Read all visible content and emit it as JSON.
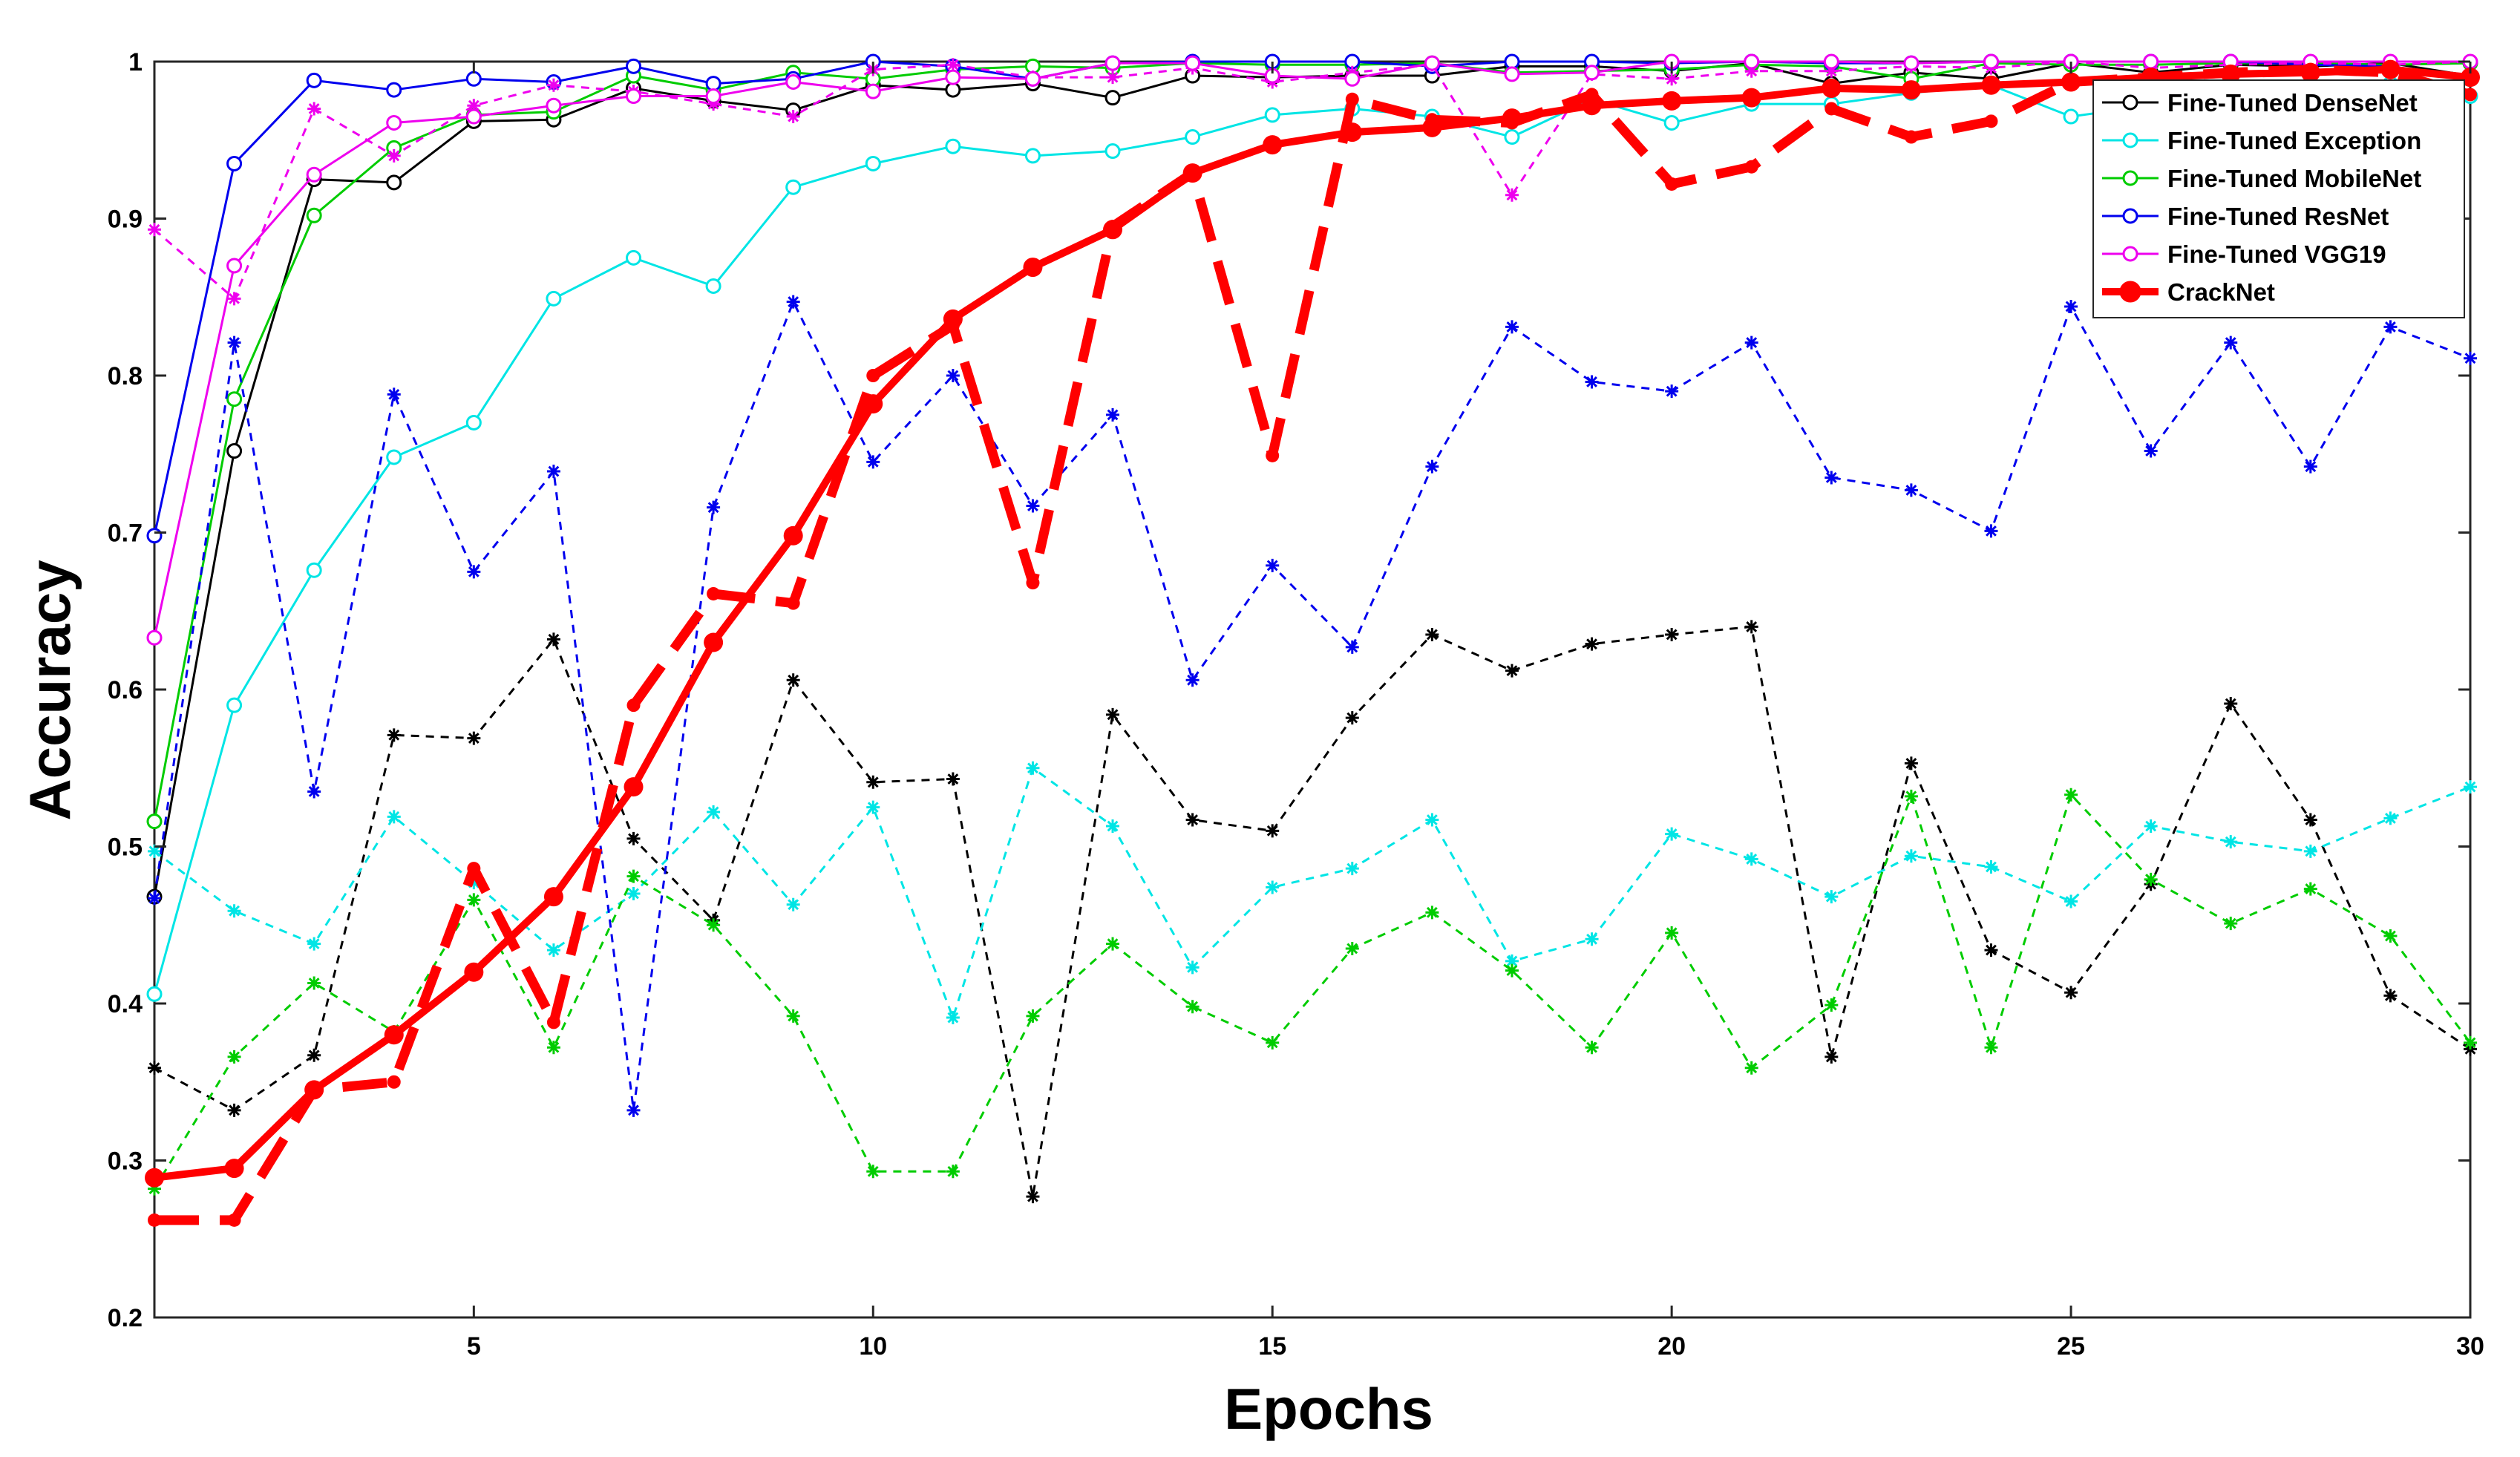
{
  "chart_data": {
    "type": "line",
    "xlabel": "Epochs",
    "ylabel": "Accuracy",
    "xlim": [
      1,
      30
    ],
    "ylim": [
      0.2,
      1.0
    ],
    "xticks": [
      5,
      10,
      15,
      20,
      25,
      30
    ],
    "yticks": [
      0.2,
      0.3,
      0.4,
      0.5,
      0.6,
      0.7,
      0.8,
      0.9,
      1.0
    ],
    "ytick_labels": [
      "0.2",
      "0.3",
      "0.4",
      "0.5",
      "0.6",
      "0.7",
      "0.8",
      "0.9",
      "1"
    ],
    "grid": false,
    "legend_position": "top-right",
    "x": [
      1,
      2,
      3,
      4,
      5,
      6,
      7,
      8,
      9,
      10,
      11,
      12,
      13,
      14,
      15,
      16,
      17,
      18,
      19,
      20,
      21,
      22,
      23,
      24,
      25,
      26,
      27,
      28,
      29,
      30
    ],
    "series": [
      {
        "name": "Fine-Tuned DenseNet",
        "color": "#000000",
        "legend": true,
        "train": [
          0.468,
          0.752,
          0.925,
          0.923,
          0.962,
          0.963,
          0.983,
          0.975,
          0.969,
          0.985,
          0.982,
          0.986,
          0.977,
          0.991,
          0.99,
          0.991,
          0.991,
          0.997,
          0.997,
          0.994,
          0.999,
          0.986,
          0.993,
          0.989,
          0.999,
          0.993,
          0.998,
          0.997,
          0.999,
          0.991
        ],
        "val": [
          0.359,
          0.332,
          0.367,
          0.571,
          0.569,
          0.632,
          0.505,
          0.453,
          0.606,
          0.541,
          0.543,
          0.277,
          0.584,
          0.517,
          0.51,
          0.582,
          0.635,
          0.612,
          0.629,
          0.635,
          0.64,
          0.366,
          0.553,
          0.434,
          0.407,
          0.476,
          0.591,
          0.517,
          0.405,
          0.371
        ]
      },
      {
        "name": "Fine-Tuned Exception",
        "color": "#00e5e5",
        "legend": true,
        "train": [
          0.406,
          0.59,
          0.676,
          0.748,
          0.77,
          0.849,
          0.875,
          0.857,
          0.92,
          0.935,
          0.946,
          0.94,
          0.943,
          0.952,
          0.966,
          0.97,
          0.965,
          0.952,
          0.976,
          0.961,
          0.973,
          0.973,
          0.98,
          0.985,
          0.965,
          0.972,
          0.977,
          0.982,
          0.986,
          0.978
        ],
        "val": [
          0.497,
          0.459,
          0.438,
          0.519,
          0.477,
          0.434,
          0.47,
          0.522,
          0.463,
          0.525,
          0.391,
          0.55,
          0.513,
          0.423,
          0.474,
          0.486,
          0.517,
          0.427,
          0.441,
          0.508,
          0.492,
          0.468,
          0.494,
          0.487,
          0.465,
          0.513,
          0.503,
          0.497,
          0.518,
          0.538
        ]
      },
      {
        "name": "Fine-Tuned MobileNet",
        "color": "#00cc00",
        "legend": true,
        "train": [
          0.516,
          0.785,
          0.902,
          0.945,
          0.966,
          0.968,
          0.991,
          0.982,
          0.993,
          0.989,
          0.995,
          0.997,
          0.996,
          0.999,
          0.998,
          0.998,
          0.999,
          0.993,
          0.994,
          0.995,
          0.998,
          0.997,
          0.989,
          0.999,
          0.998,
          0.998,
          0.999,
          0.999,
          0.998,
          0.999
        ],
        "val": [
          0.282,
          0.366,
          0.413,
          0.382,
          0.466,
          0.372,
          0.481,
          0.45,
          0.392,
          0.293,
          0.293,
          0.392,
          0.438,
          0.398,
          0.375,
          0.435,
          0.458,
          0.421,
          0.372,
          0.445,
          0.359,
          0.399,
          0.532,
          0.372,
          0.533,
          0.479,
          0.451,
          0.473,
          0.443,
          0.375
        ]
      },
      {
        "name": "Fine-Tuned ResNet",
        "color": "#0000ee",
        "legend": true,
        "train": [
          0.698,
          0.935,
          0.988,
          0.982,
          0.989,
          0.987,
          0.997,
          0.986,
          0.989,
          1.0,
          0.997,
          0.989,
          0.999,
          1.0,
          1.0,
          1.0,
          0.997,
          1.0,
          1.0,
          0.999,
          1.0,
          0.999,
          0.999,
          1.0,
          1.0,
          1.0,
          1.0,
          0.998,
          0.997,
          0.99
        ],
        "val": [
          0.467,
          0.821,
          0.535,
          0.788,
          0.675,
          0.739,
          0.332,
          0.716,
          0.847,
          0.745,
          0.8,
          0.717,
          0.775,
          0.606,
          0.679,
          0.627,
          0.742,
          0.831,
          0.796,
          0.79,
          0.821,
          0.735,
          0.727,
          0.701,
          0.844,
          0.752,
          0.821,
          0.742,
          0.831,
          0.811
        ]
      },
      {
        "name": "Fine-Tuned VGG19",
        "color": "#ee00ee",
        "legend": true,
        "train": [
          0.633,
          0.87,
          0.928,
          0.961,
          0.965,
          0.972,
          0.978,
          0.978,
          0.987,
          0.981,
          0.99,
          0.989,
          0.999,
          0.999,
          0.991,
          0.989,
          0.999,
          0.992,
          0.993,
          1.0,
          1.0,
          1.0,
          0.999,
          1.0,
          1.0,
          1.0,
          1.0,
          1.0,
          1.0,
          1.0
        ],
        "val": [
          0.893,
          0.849,
          0.97,
          0.94,
          0.972,
          0.985,
          0.981,
          0.973,
          0.965,
          0.995,
          0.998,
          0.99,
          0.99,
          0.996,
          0.987,
          0.993,
          0.998,
          0.915,
          0.992,
          0.989,
          0.994,
          0.994,
          0.997,
          0.996,
          1.0,
          0.996,
          0.998,
          0.999,
          0.998,
          1.0
        ]
      },
      {
        "name": "CrackNet",
        "color": "#ff0000",
        "legend": true,
        "train": [
          0.289,
          0.295,
          0.345,
          0.38,
          0.42,
          0.468,
          0.538,
          0.63,
          0.698,
          0.782,
          0.836,
          0.869,
          0.893,
          0.929,
          0.947,
          0.955,
          0.958,
          0.964,
          0.972,
          0.975,
          0.977,
          0.983,
          0.982,
          0.985,
          0.987,
          0.99,
          0.992,
          0.993,
          0.995,
          0.99
        ],
        "val": [
          0.262,
          0.262,
          0.345,
          0.35,
          0.486,
          0.388,
          0.59,
          0.661,
          0.655,
          0.8,
          0.832,
          0.668,
          0.895,
          0.929,
          0.749,
          0.976,
          0.963,
          0.961,
          0.979,
          0.922,
          0.933,
          0.97,
          0.952,
          0.962,
          0.987,
          0.99,
          0.993,
          0.995,
          0.993,
          0.979
        ]
      }
    ]
  }
}
